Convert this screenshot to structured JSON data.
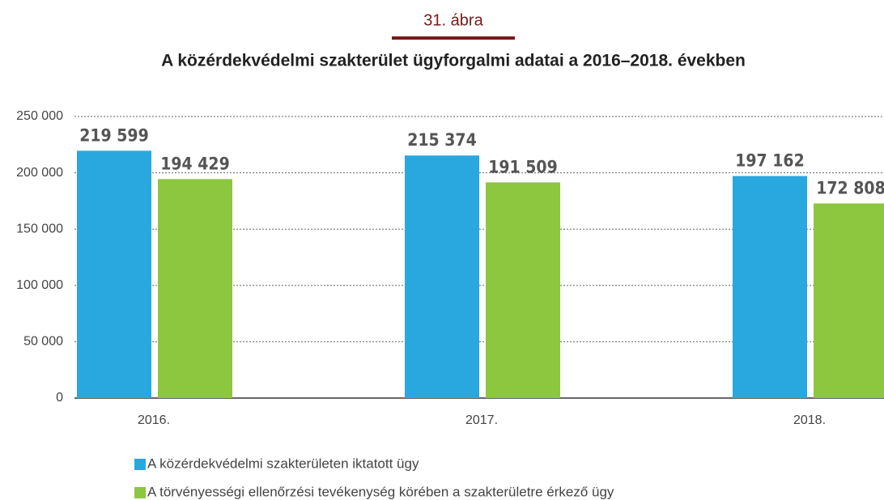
{
  "chart_data": {
    "type": "bar",
    "subtitle": "31. ábra",
    "title": "A közérdekvédelmi szakterület ügyforgalmi adatai a 2016–2018. években",
    "categories": [
      "2016.",
      "2017.",
      "2018."
    ],
    "series": [
      {
        "name": "A közérdekvédelmi szakterületen iktatott ügy",
        "color": "#29a8e0",
        "values": [
          219599,
          215374,
          197162
        ],
        "value_labels": [
          "219 599",
          "215 374",
          "197 162"
        ]
      },
      {
        "name": "A törvényességi ellenőrzési tevékenység körében a szakterületre érkező ügy",
        "color": "#8dc63f",
        "values": [
          194429,
          191509,
          172808
        ],
        "value_labels": [
          "194 429",
          "191 509",
          "172 808"
        ]
      }
    ],
    "ylim": [
      0,
      250000
    ],
    "yticks": [
      0,
      {
        "value": 50000,
        "label": "50 000"
      },
      {
        "value": 100000,
        "label": "100 000"
      },
      {
        "value": 150000,
        "label": "150 000"
      },
      {
        "value": 200000,
        "label": "200 000"
      },
      {
        "value": 250000,
        "label": "250 000"
      }
    ],
    "grid": true,
    "legend": "bottom"
  }
}
